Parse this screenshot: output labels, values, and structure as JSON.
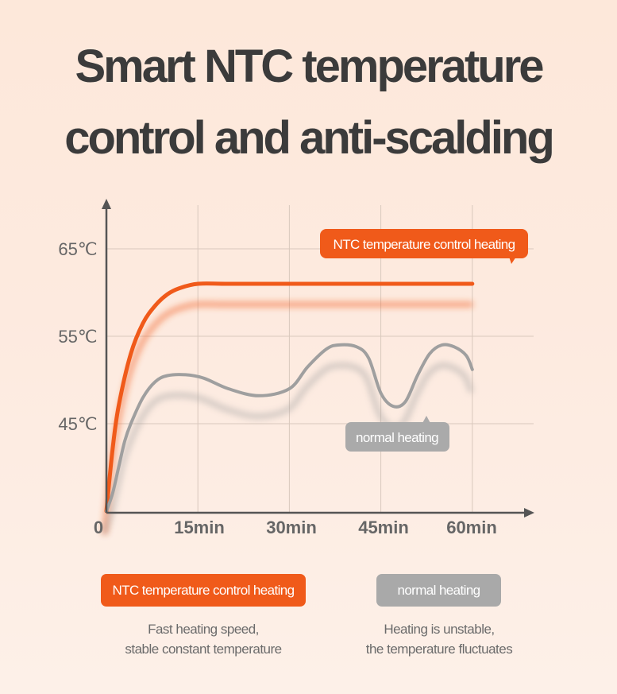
{
  "title": {
    "line1": "Smart NTC temperature",
    "line2": "control and anti-scalding"
  },
  "colors": {
    "ntc": "#f05a1a",
    "normal": "#9f9f9f",
    "axis": "#555555",
    "grid": "#d9c8bd",
    "tick_text": "#666666"
  },
  "chart_data": {
    "type": "line",
    "xlabel": "",
    "ylabel": "",
    "x_ticks": [
      "0",
      "15min",
      "30min",
      "45min",
      "60min"
    ],
    "y_ticks": [
      "45℃",
      "55℃",
      "65℃"
    ],
    "xlim": [
      0,
      70
    ],
    "ylim": [
      35,
      70
    ],
    "grid": true,
    "series": [
      {
        "name": "NTC temperature control heating",
        "x": [
          0,
          1,
          2,
          4,
          6,
          8,
          10,
          12,
          15,
          20,
          30,
          45,
          60
        ],
        "y": [
          35,
          42,
          47,
          53,
          56.5,
          58.5,
          59.8,
          60.5,
          61,
          61,
          61,
          61,
          61
        ]
      },
      {
        "name": "normal heating",
        "x": [
          0,
          1,
          2,
          3,
          4,
          6,
          8,
          10,
          13,
          16,
          20,
          25,
          30,
          33,
          36,
          38,
          41,
          43,
          45,
          47,
          49,
          51,
          53,
          55,
          57,
          59,
          60
        ],
        "y": [
          35,
          37,
          40,
          43,
          45,
          48,
          49.8,
          50.5,
          50.6,
          50.2,
          49,
          48.2,
          49,
          51.5,
          53.5,
          54,
          53.8,
          52.5,
          48.5,
          47,
          47.5,
          50.5,
          53,
          54,
          53.8,
          52.8,
          51.2
        ]
      }
    ],
    "annotations": {
      "ntc_label": "NTC temperature control heating",
      "normal_label": "normal heating"
    }
  },
  "legend": {
    "ntc_label": "NTC temperature control heating",
    "ntc_desc_line1": "Fast heating speed,",
    "ntc_desc_line2": "stable constant temperature",
    "normal_label": "normal heating",
    "normal_desc_line1": "Heating is unstable,",
    "normal_desc_line2": "the temperature fluctuates"
  }
}
